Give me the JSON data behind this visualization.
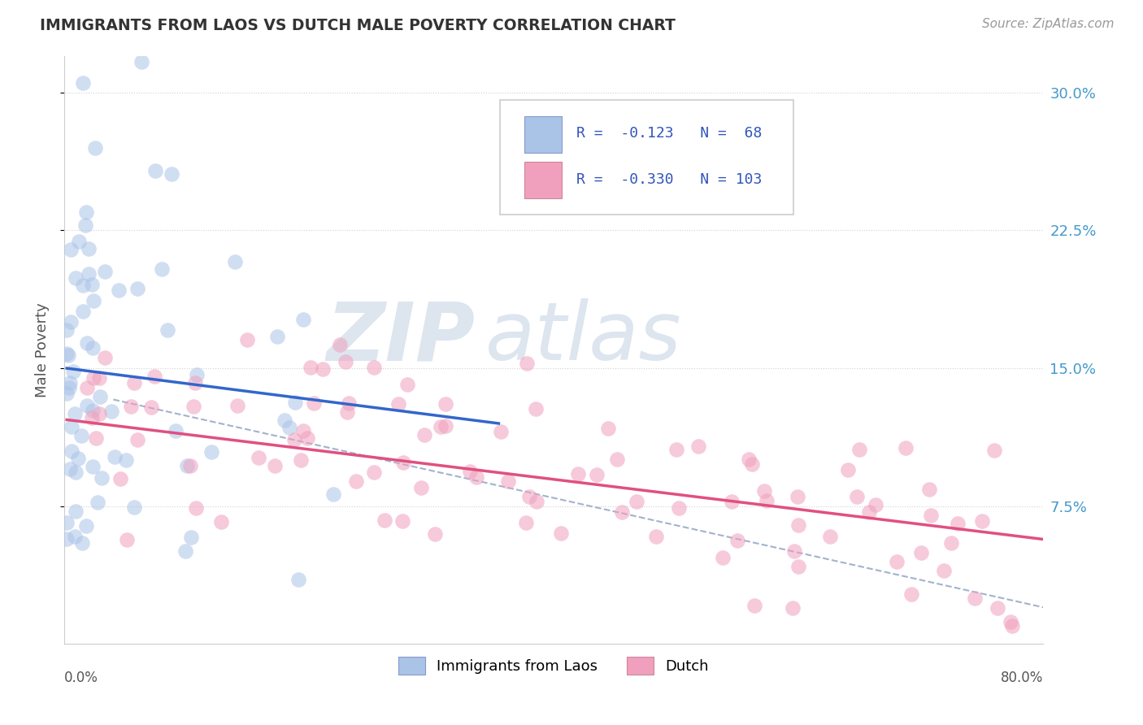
{
  "title": "IMMIGRANTS FROM LAOS VS DUTCH MALE POVERTY CORRELATION CHART",
  "source": "Source: ZipAtlas.com",
  "ylabel": "Male Poverty",
  "xlim": [
    0.0,
    0.8
  ],
  "ylim": [
    0.0,
    0.32
  ],
  "ytick_vals": [
    0.075,
    0.15,
    0.225,
    0.3
  ],
  "ytick_labels": [
    "7.5%",
    "15.0%",
    "22.5%",
    "30.0%"
  ],
  "color_blue": "#aac4e8",
  "color_pink": "#f0a0bc",
  "color_line_blue": "#3366cc",
  "color_line_pink": "#e05080",
  "color_line_dashed": "#99aac8",
  "watermark_zip": "ZIP",
  "watermark_atlas": "atlas",
  "watermark_color": "#dde5ef",
  "background_color": "#ffffff",
  "grid_color": "#cccccc",
  "legend_text_color": "#3355bb",
  "title_color": "#333333",
  "source_color": "#999999",
  "ytick_color": "#4499cc",
  "xlabel_color": "#555555"
}
